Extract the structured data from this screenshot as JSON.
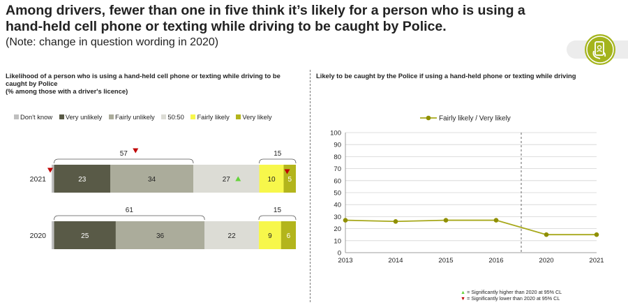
{
  "header": {
    "title": "Among drivers, fewer than one in five think it’s likely for a person who is using a hand-held cell phone or texting while driving to be caught by Police.",
    "note": "(Note: change in question wording in 2020)",
    "icon": "phone-hand-icon",
    "accent_color": "#a4b41c"
  },
  "footnotes": {
    "up_text": "= Significantly higher than 2020 at 95% CL",
    "down_text": "= Significantly lower than 2020 at 95% CL"
  },
  "chart_data": [
    {
      "type": "bar",
      "orientation": "horizontal-stacked",
      "title": "Likelihood of a person who is using a hand-held cell phone or texting while driving to be caught by Police",
      "subtitle": "(% among those with a driver's licence)",
      "categories": [
        "2021",
        "2020"
      ],
      "series": [
        {
          "name": "Don't know",
          "color": "#bfbfbf",
          "values": [
            1,
            1
          ]
        },
        {
          "name": "Very unlikely",
          "color": "#595a47",
          "values": [
            23,
            25
          ]
        },
        {
          "name": "Fairly unlikely",
          "color": "#abac9b",
          "values": [
            34,
            36
          ]
        },
        {
          "name": "50:50",
          "color": "#dcdcd5",
          "values": [
            27,
            22
          ]
        },
        {
          "name": "Fairly likely",
          "color": "#f7f74b",
          "values": [
            10,
            9
          ]
        },
        {
          "name": "Very likely",
          "color": "#b3b51c",
          "values": [
            5,
            6
          ]
        }
      ],
      "bracket_totals": {
        "unlikely": {
          "2021": "57",
          "2020": "61"
        },
        "likely": {
          "2021": "15",
          "2020": "15"
        }
      },
      "significance_2021": {
        "Don't know": "down",
        "unlikely-total": "down",
        "50:50": "up",
        "Very likely": "down"
      },
      "legend_position": "top"
    },
    {
      "type": "line",
      "title": "Likely to be caught by the Police if using a hand-held phone or texting while driving",
      "x": [
        "2013",
        "2014",
        "2015",
        "2016",
        "2020",
        "2021"
      ],
      "series": [
        {
          "name": "Fairly likely / Very likely",
          "color": "#a7a81a",
          "values": [
            27,
            26,
            27,
            27,
            15,
            15
          ]
        }
      ],
      "ylim": [
        0,
        100
      ],
      "yticks": [
        "0",
        "10",
        "20",
        "30",
        "40",
        "50",
        "60",
        "70",
        "80",
        "90",
        "100"
      ],
      "grid": true,
      "wording_change_marker": "between 2016 and 2020",
      "legend_position": "top"
    }
  ]
}
